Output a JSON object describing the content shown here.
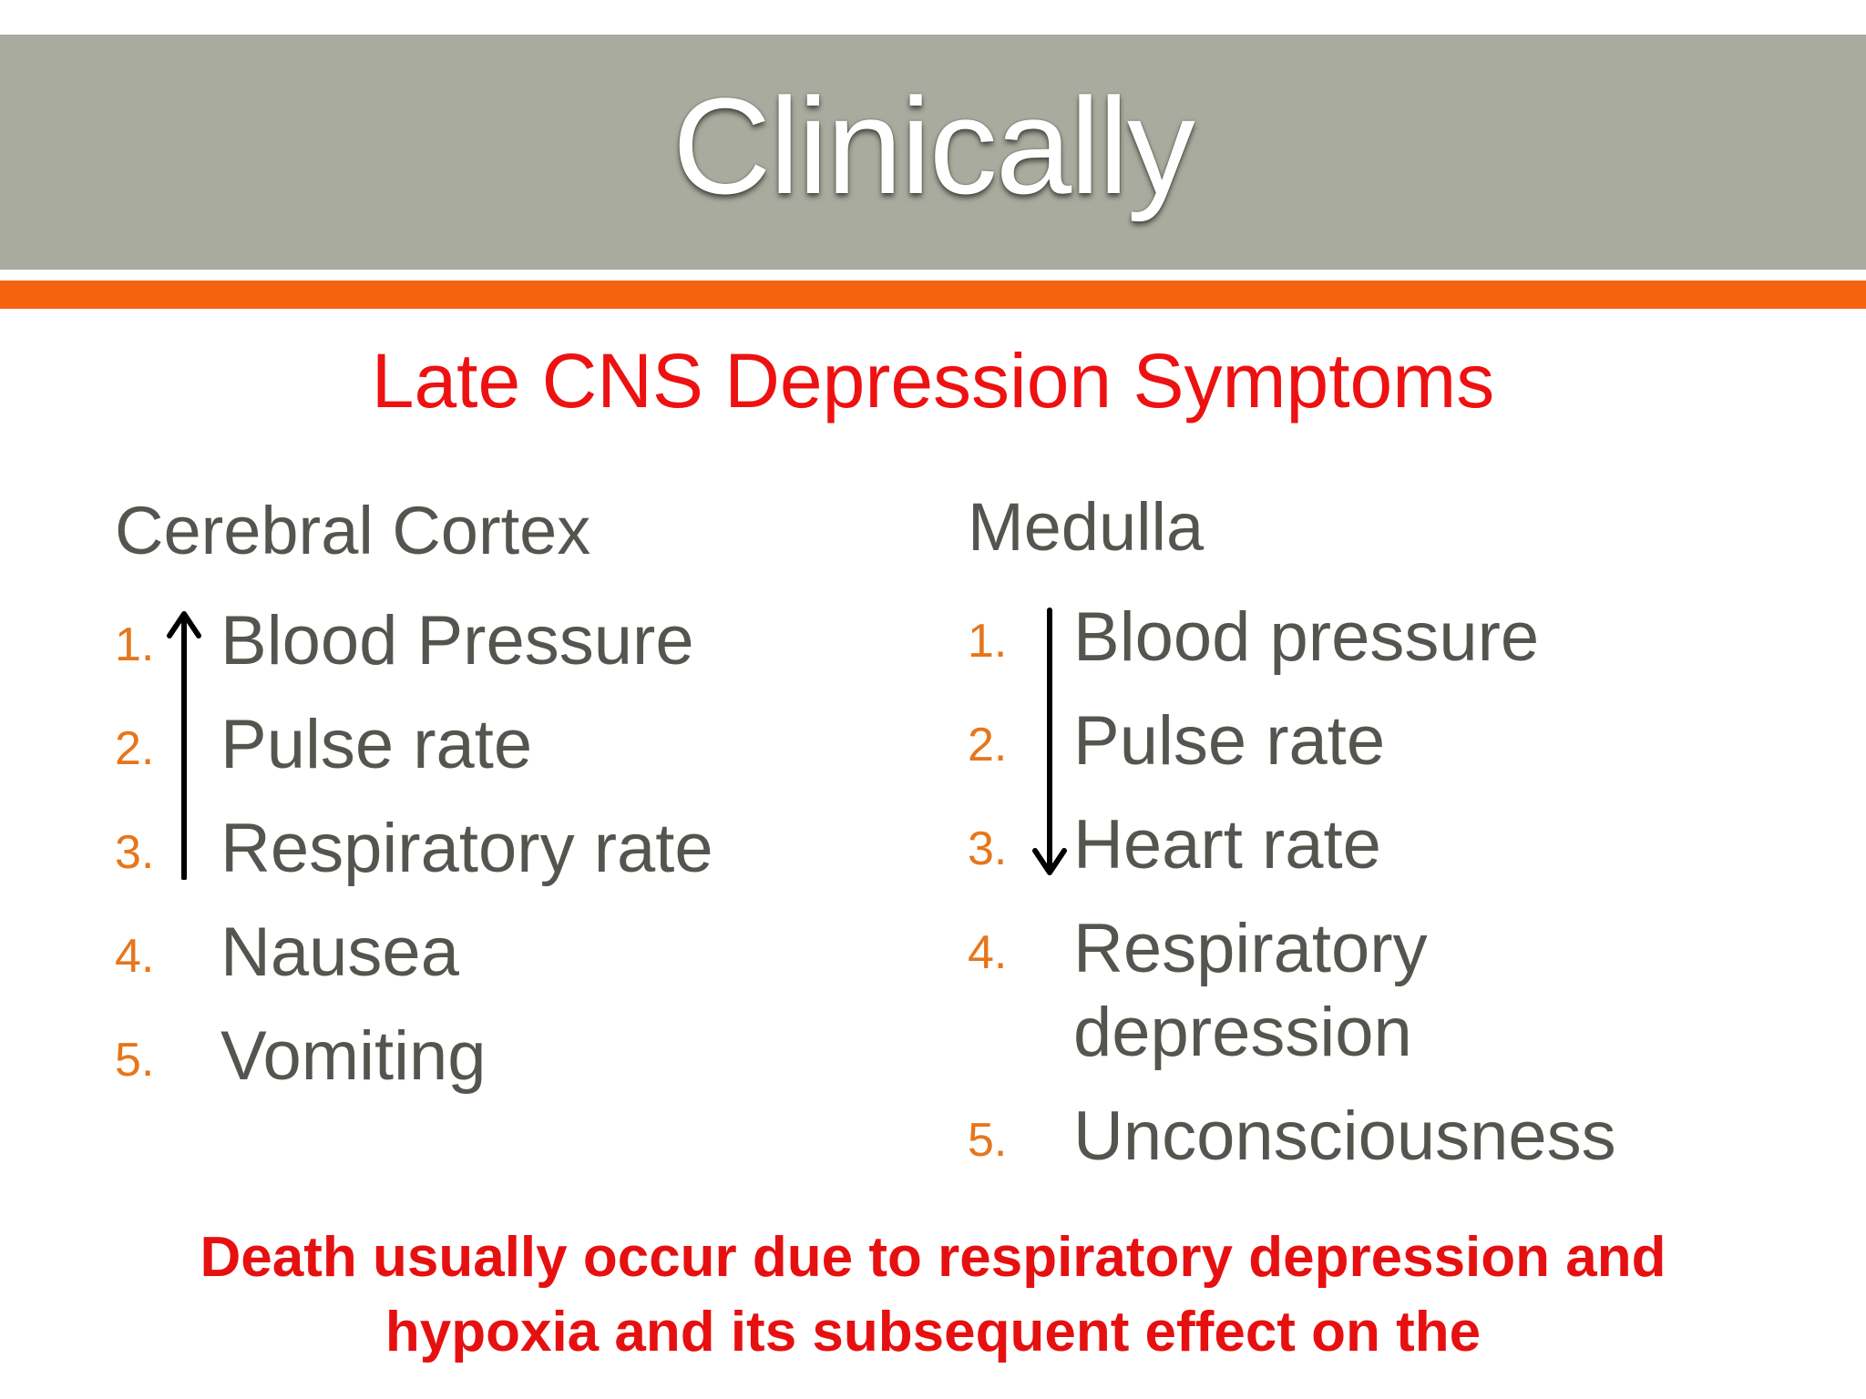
{
  "slide": {
    "title": "Clinically",
    "subtitle": "Late CNS Depression Symptoms",
    "colors": {
      "band": "#a8ab9d",
      "accent": "#f4630e",
      "red": "#ee1111",
      "text": "#555550",
      "number": "#e6761c"
    }
  },
  "left_column": {
    "heading": "Cerebral Cortex",
    "arrow_icon": "up-arrow-icon",
    "items": [
      {
        "num": "1.",
        "label": "Blood Pressure"
      },
      {
        "num": "2.",
        "label": "Pulse rate"
      },
      {
        "num": "3.",
        "label": "Respiratory rate"
      },
      {
        "num": "4.",
        "label": "Nausea"
      },
      {
        "num": "5.",
        "label": "Vomiting"
      }
    ]
  },
  "right_column": {
    "heading": "Medulla",
    "arrow_icon": "down-arrow-icon",
    "items": [
      {
        "num": "1.",
        "label": "Blood pressure"
      },
      {
        "num": "2.",
        "label": "Pulse rate"
      },
      {
        "num": "3.",
        "label": "Heart rate"
      },
      {
        "num": "4.",
        "label": "Respiratory",
        "label_line2": "depression"
      },
      {
        "num": "5.",
        "label": "Unconsciousness"
      }
    ]
  },
  "footer": {
    "line1": "Death usually occur due to respiratory depression and",
    "line2": "hypoxia and its subsequent effect on the"
  }
}
